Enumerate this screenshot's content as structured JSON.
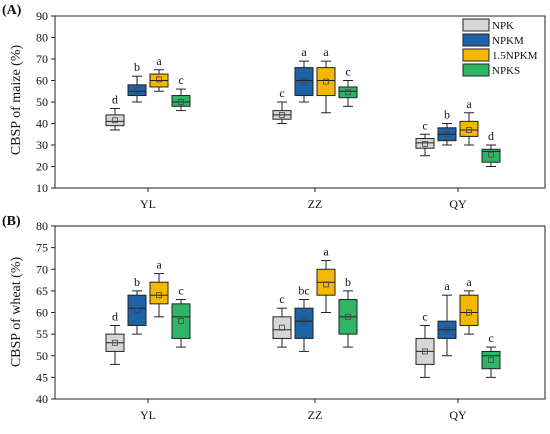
{
  "chart_data": [
    {
      "type": "box",
      "panel_label": "(A)",
      "ylabel": "CBSP of maize (%)",
      "xlabel": "",
      "ylim": [
        10,
        90
      ],
      "yticks": [
        10,
        20,
        30,
        40,
        50,
        60,
        70,
        80,
        90
      ],
      "categories": [
        "YL",
        "ZZ",
        "QY"
      ],
      "legend": {
        "position": "top-right",
        "entries": [
          "NPK",
          "NPKM",
          "1.5NPKM",
          "NPKS"
        ]
      },
      "series": [
        {
          "name": "NPK",
          "color": "#d6d6d6",
          "boxes": [
            {
              "min": 37,
              "q1": 39,
              "median": 41,
              "q3": 44,
              "max": 47,
              "mean": 41.5,
              "letter": "d"
            },
            {
              "min": 40,
              "q1": 42,
              "median": 44,
              "q3": 46,
              "max": 50,
              "mean": 44,
              "letter": "c"
            },
            {
              "min": 25,
              "q1": 28.5,
              "median": 31,
              "q3": 33,
              "max": 35,
              "mean": 30.5,
              "letter": "c"
            }
          ]
        },
        {
          "name": "NPKM",
          "color": "#1e63a6",
          "boxes": [
            {
              "min": 50,
              "q1": 53,
              "median": 55,
              "q3": 58,
              "max": 62,
              "mean": 55.5,
              "letter": "b"
            },
            {
              "min": 50,
              "q1": 53,
              "median": 60,
              "q3": 66,
              "max": 69,
              "mean": 59.5,
              "letter": "a"
            },
            {
              "min": 30,
              "q1": 32,
              "median": 35,
              "q3": 38,
              "max": 40,
              "mean": 35,
              "letter": "b"
            }
          ]
        },
        {
          "name": "1.5NPKM",
          "color": "#f5b800",
          "boxes": [
            {
              "min": 55,
              "q1": 57,
              "median": 60,
              "q3": 63,
              "max": 65,
              "mean": 60.5,
              "letter": "a"
            },
            {
              "min": 45,
              "q1": 53,
              "median": 60,
              "q3": 66,
              "max": 69,
              "mean": 59.5,
              "letter": "a"
            },
            {
              "min": 30,
              "q1": 34,
              "median": 37,
              "q3": 41,
              "max": 45,
              "mean": 37,
              "letter": "a"
            }
          ]
        },
        {
          "name": "NPKS",
          "color": "#2fb565",
          "boxes": [
            {
              "min": 46,
              "q1": 48,
              "median": 50,
              "q3": 53,
              "max": 56,
              "mean": 50,
              "letter": "c"
            },
            {
              "min": 48,
              "q1": 52,
              "median": 55,
              "q3": 57,
              "max": 60,
              "mean": 54.5,
              "letter": "c"
            },
            {
              "min": 20,
              "q1": 22,
              "median": 27,
              "q3": 28,
              "max": 30,
              "mean": 25.5,
              "letter": "d"
            }
          ]
        }
      ]
    },
    {
      "type": "box",
      "panel_label": "(B)",
      "ylabel": "CBSP of wheat (%)",
      "xlabel": "",
      "ylim": [
        40,
        80
      ],
      "yticks": [
        40,
        45,
        50,
        55,
        60,
        65,
        70,
        75,
        80
      ],
      "categories": [
        "YL",
        "ZZ",
        "QY"
      ],
      "series": [
        {
          "name": "NPK",
          "color": "#d6d6d6",
          "boxes": [
            {
              "min": 48,
              "q1": 51,
              "median": 53,
              "q3": 55,
              "max": 57,
              "mean": 53,
              "letter": "d"
            },
            {
              "min": 52,
              "q1": 54,
              "median": 56,
              "q3": 59,
              "max": 61,
              "mean": 56.5,
              "letter": "c"
            },
            {
              "min": 45,
              "q1": 48,
              "median": 51,
              "q3": 54,
              "max": 57,
              "mean": 51,
              "letter": "c"
            }
          ]
        },
        {
          "name": "NPKM",
          "color": "#1e63a6",
          "boxes": [
            {
              "min": 55,
              "q1": 57,
              "median": 61,
              "q3": 64,
              "max": 65,
              "mean": 60.5,
              "letter": "b"
            },
            {
              "min": 51,
              "q1": 54,
              "median": 58,
              "q3": 61,
              "max": 63,
              "mean": 58,
              "letter": "bc"
            },
            {
              "min": 50,
              "q1": 54,
              "median": 56,
              "q3": 58,
              "max": 64,
              "mean": 56,
              "letter": "a"
            }
          ]
        },
        {
          "name": "1.5NPKM",
          "color": "#f5b800",
          "boxes": [
            {
              "min": 59,
              "q1": 62,
              "median": 64,
              "q3": 67,
              "max": 69,
              "mean": 64,
              "letter": "a"
            },
            {
              "min": 60,
              "q1": 64,
              "median": 67,
              "q3": 70,
              "max": 72,
              "mean": 66.5,
              "letter": "a"
            },
            {
              "min": 55,
              "q1": 57,
              "median": 60,
              "q3": 64,
              "max": 65,
              "mean": 60,
              "letter": "a"
            }
          ]
        },
        {
          "name": "NPKS",
          "color": "#2fb565",
          "boxes": [
            {
              "min": 52,
              "q1": 54,
              "median": 59,
              "q3": 62,
              "max": 63,
              "mean": 58,
              "letter": "c"
            },
            {
              "min": 52,
              "q1": 55,
              "median": 59,
              "q3": 63,
              "max": 65,
              "mean": 59,
              "letter": "b"
            },
            {
              "min": 45,
              "q1": 47,
              "median": 50,
              "q3": 51,
              "max": 52,
              "mean": 49,
              "letter": "c"
            }
          ]
        }
      ]
    }
  ]
}
